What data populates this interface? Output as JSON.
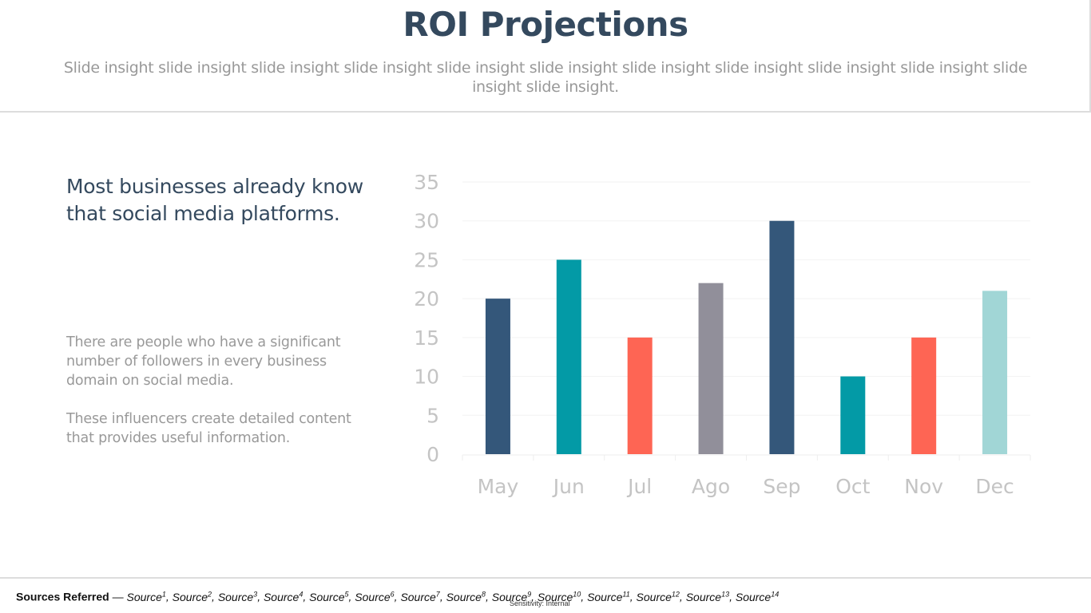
{
  "header": {
    "title": "ROI Projections",
    "subtitle": "Slide insight slide insight slide insight slide insight slide insight slide insight slide insight slide insight slide insight slide insight slide insight slide insight."
  },
  "left": {
    "heading": "Most businesses already know that social media platforms.",
    "paragraph1": "There are people who have a significant number of followers in every business domain on social media.",
    "paragraph2": "These influencers create detailed content that provides useful information."
  },
  "chart_data": {
    "type": "bar",
    "categories": [
      "May",
      "Jun",
      "Jul",
      "Ago",
      "Sep",
      "Oct",
      "Nov",
      "Dec"
    ],
    "values": [
      20,
      25,
      15,
      22,
      30,
      10,
      15,
      21
    ],
    "colors": [
      "#34577a",
      "#039aa6",
      "#fe6554",
      "#918f9a",
      "#34577a",
      "#039aa6",
      "#fe6554",
      "#a1d6d6"
    ],
    "yticks": [
      "0",
      "5",
      "10",
      "15",
      "20",
      "25",
      "30",
      "35"
    ],
    "ylim": [
      0,
      35
    ],
    "grid": true
  },
  "footer": {
    "sources_label": "Sources Referred",
    "dash": " — ",
    "sources": [
      {
        "name": "Source",
        "sup": "1"
      },
      {
        "name": "Source",
        "sup": "2"
      },
      {
        "name": "Source",
        "sup": "3"
      },
      {
        "name": "Source",
        "sup": "4"
      },
      {
        "name": "Source",
        "sup": "5"
      },
      {
        "name": "Source",
        "sup": "6"
      },
      {
        "name": "Source",
        "sup": "7"
      },
      {
        "name": "Source",
        "sup": "8"
      },
      {
        "name": "Source",
        "sup": "9"
      },
      {
        "name": "Source",
        "sup": "10"
      },
      {
        "name": "Source",
        "sup": "11"
      },
      {
        "name": "Source",
        "sup": "12"
      },
      {
        "name": "Source",
        "sup": "13"
      },
      {
        "name": "Source",
        "sup": "14"
      }
    ],
    "sensitivity": "Sensitivity: Internal"
  }
}
